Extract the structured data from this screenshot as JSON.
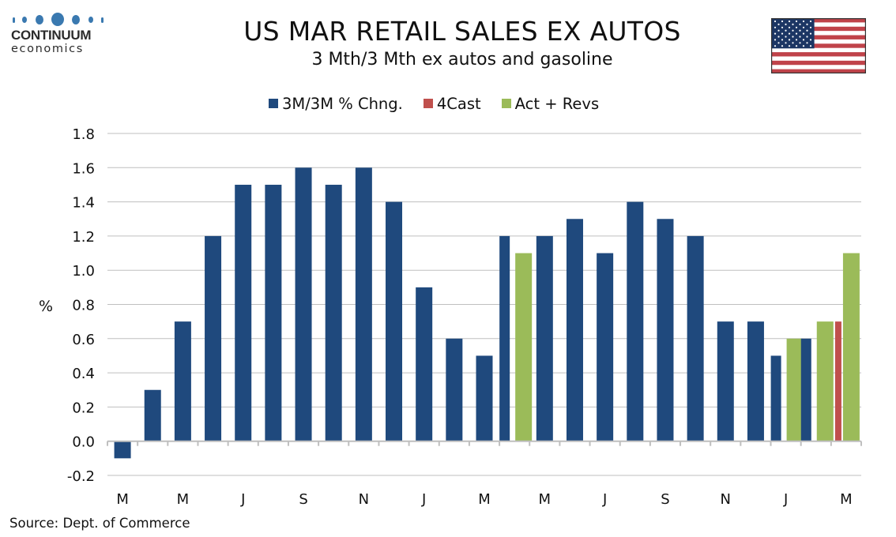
{
  "logo": {
    "name": "CONTINUUM",
    "sub": "economics"
  },
  "header": {
    "title": "US MAR RETAIL SALES EX AUTOS",
    "subtitle": "3 Mth/3 Mth  ex autos and gasoline"
  },
  "flag": {
    "icon": "us-flag-icon"
  },
  "footer": {
    "source": "Source: Dept. of Commerce"
  },
  "colors": {
    "blue": "#1f497d",
    "red": "#c0504d",
    "green": "#9bbb59",
    "grid": "#bfbfbf",
    "axis": "#bfbfbf"
  },
  "chart_data": {
    "type": "bar",
    "title": "US MAR RETAIL SALES EX AUTOS",
    "subtitle": "3 Mth/3 Mth  ex autos and gasoline",
    "xlabel": "",
    "ylabel": "%",
    "ylim": [
      -0.2,
      1.8
    ],
    "yticks": [
      "1.8",
      "1.6",
      "1.4",
      "1.2",
      "1.0",
      "0.8",
      "0.6",
      "0.4",
      "0.2",
      "0.0",
      "-0.2"
    ],
    "ytick_values": [
      1.8,
      1.6,
      1.4,
      1.2,
      1.0,
      0.8,
      0.6,
      0.4,
      0.2,
      0.0,
      -0.2
    ],
    "grid": true,
    "legend_position": "top-center",
    "categories": [
      "Mar",
      "Apr",
      "May",
      "Jun",
      "Jul",
      "Aug",
      "Sep",
      "Oct",
      "Nov",
      "Dec",
      "Jan",
      "Feb",
      "Mar",
      "Apr",
      "May",
      "Jun",
      "Jul",
      "Aug",
      "Sep",
      "Oct",
      "Nov",
      "Dec",
      "Jan",
      "Feb",
      "Mar"
    ],
    "xtick_labels": [
      {
        "index": 0,
        "label": "M"
      },
      {
        "index": 2,
        "label": "M"
      },
      {
        "index": 4,
        "label": "J"
      },
      {
        "index": 6,
        "label": "S"
      },
      {
        "index": 8,
        "label": "N"
      },
      {
        "index": 10,
        "label": "J"
      },
      {
        "index": 12,
        "label": "M"
      },
      {
        "index": 14,
        "label": "M"
      },
      {
        "index": 16,
        "label": "J"
      },
      {
        "index": 18,
        "label": "S"
      },
      {
        "index": 20,
        "label": "N"
      },
      {
        "index": 22,
        "label": "J"
      },
      {
        "index": 24,
        "label": "M"
      }
    ],
    "series": [
      {
        "name": "3M/3M % Chng.",
        "color": "#1f497d",
        "values": [
          -0.1,
          0.3,
          0.7,
          1.2,
          1.5,
          1.5,
          1.6,
          1.5,
          1.6,
          1.4,
          0.9,
          0.6,
          0.5,
          1.2,
          1.2,
          1.3,
          1.1,
          1.4,
          1.3,
          1.2,
          0.7,
          0.7,
          0.5,
          0.6,
          null
        ]
      },
      {
        "name": "4Cast",
        "color": "#c0504d",
        "values": [
          null,
          null,
          null,
          null,
          null,
          null,
          null,
          null,
          null,
          null,
          null,
          null,
          null,
          null,
          null,
          null,
          null,
          null,
          null,
          null,
          null,
          null,
          null,
          null,
          0.7
        ]
      },
      {
        "name": "Act + Revs",
        "color": "#9bbb59",
        "values": [
          null,
          null,
          null,
          null,
          null,
          null,
          null,
          null,
          null,
          null,
          null,
          null,
          null,
          1.1,
          null,
          null,
          null,
          null,
          null,
          null,
          null,
          null,
          0.6,
          0.7,
          1.1
        ]
      }
    ]
  }
}
